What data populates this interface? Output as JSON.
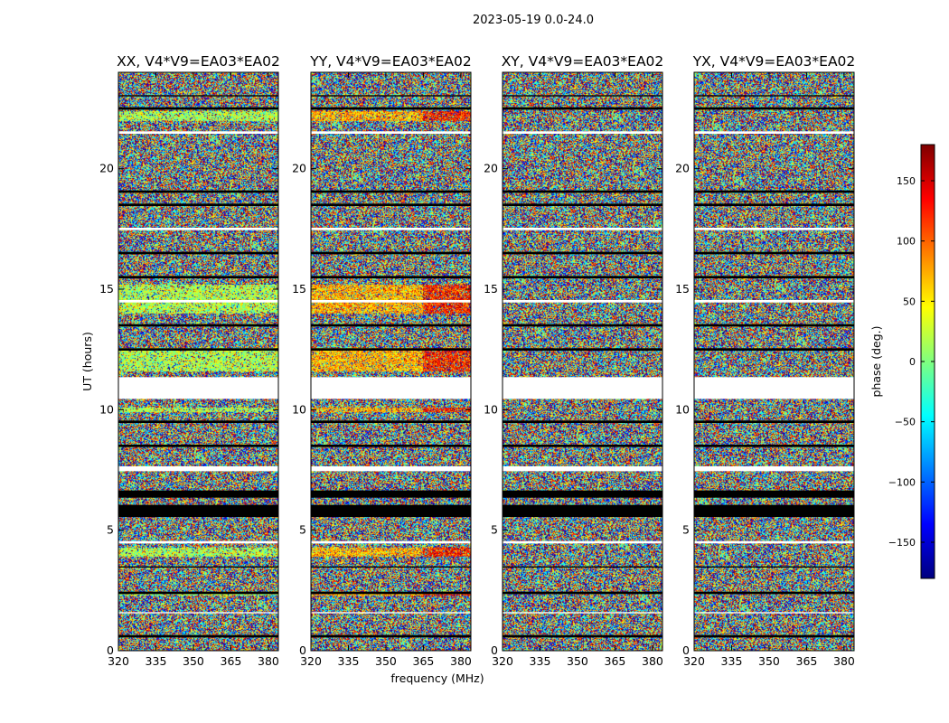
{
  "figure": {
    "suptitle": "2023-05-19 0.0-24.0"
  },
  "chart_data": {
    "type": "heatmap",
    "suptitle": "2023-05-19 0.0-24.0",
    "xlabel": "frequency (MHz)",
    "ylabel": "UT (hours)",
    "xlim": [
      320,
      384
    ],
    "ylim": [
      0,
      24
    ],
    "x_ticks": [
      320,
      335,
      350,
      365,
      380
    ],
    "y_ticks": [
      0,
      5,
      10,
      15,
      20
    ],
    "panels": [
      {
        "title": "XX, V4*V9=EA03*EA02",
        "polarization": "XX"
      },
      {
        "title": "YY, V4*V9=EA03*EA02",
        "polarization": "YY"
      },
      {
        "title": "XY, V4*V9=EA03*EA02",
        "polarization": "XY"
      },
      {
        "title": "YX, V4*V9=EA03*EA02",
        "polarization": "YX"
      }
    ],
    "colorbar": {
      "label": "phase (deg.)",
      "range": [
        -180,
        180
      ],
      "ticks": [
        -150,
        -100,
        -50,
        0,
        50,
        100,
        150
      ],
      "colormap": "jet",
      "colors": [
        "#00007f",
        "#0000ff",
        "#007fff",
        "#00ffff",
        "#7fff7f",
        "#ffff00",
        "#ff7f00",
        "#ff0000",
        "#7f0000"
      ]
    },
    "flagged_bands_hours": [
      [
        0.55,
        0.65
      ],
      [
        1.55,
        1.6
      ],
      [
        2.35,
        2.45
      ],
      [
        3.45,
        3.5
      ],
      [
        4.45,
        4.55
      ],
      [
        5.55,
        6.05
      ],
      [
        6.35,
        6.65
      ],
      [
        7.45,
        7.65
      ],
      [
        8.45,
        8.55
      ],
      [
        9.45,
        9.55
      ],
      [
        10.45,
        11.35
      ],
      [
        12.45,
        12.55
      ],
      [
        13.45,
        13.55
      ],
      [
        14.45,
        14.55
      ],
      [
        15.45,
        15.55
      ],
      [
        16.45,
        16.55
      ],
      [
        17.45,
        17.55
      ],
      [
        18.45,
        18.55
      ],
      [
        19.0,
        19.1
      ],
      [
        21.45,
        21.55
      ],
      [
        22.45,
        22.55
      ],
      [
        23.0,
        23.05
      ]
    ]
  }
}
